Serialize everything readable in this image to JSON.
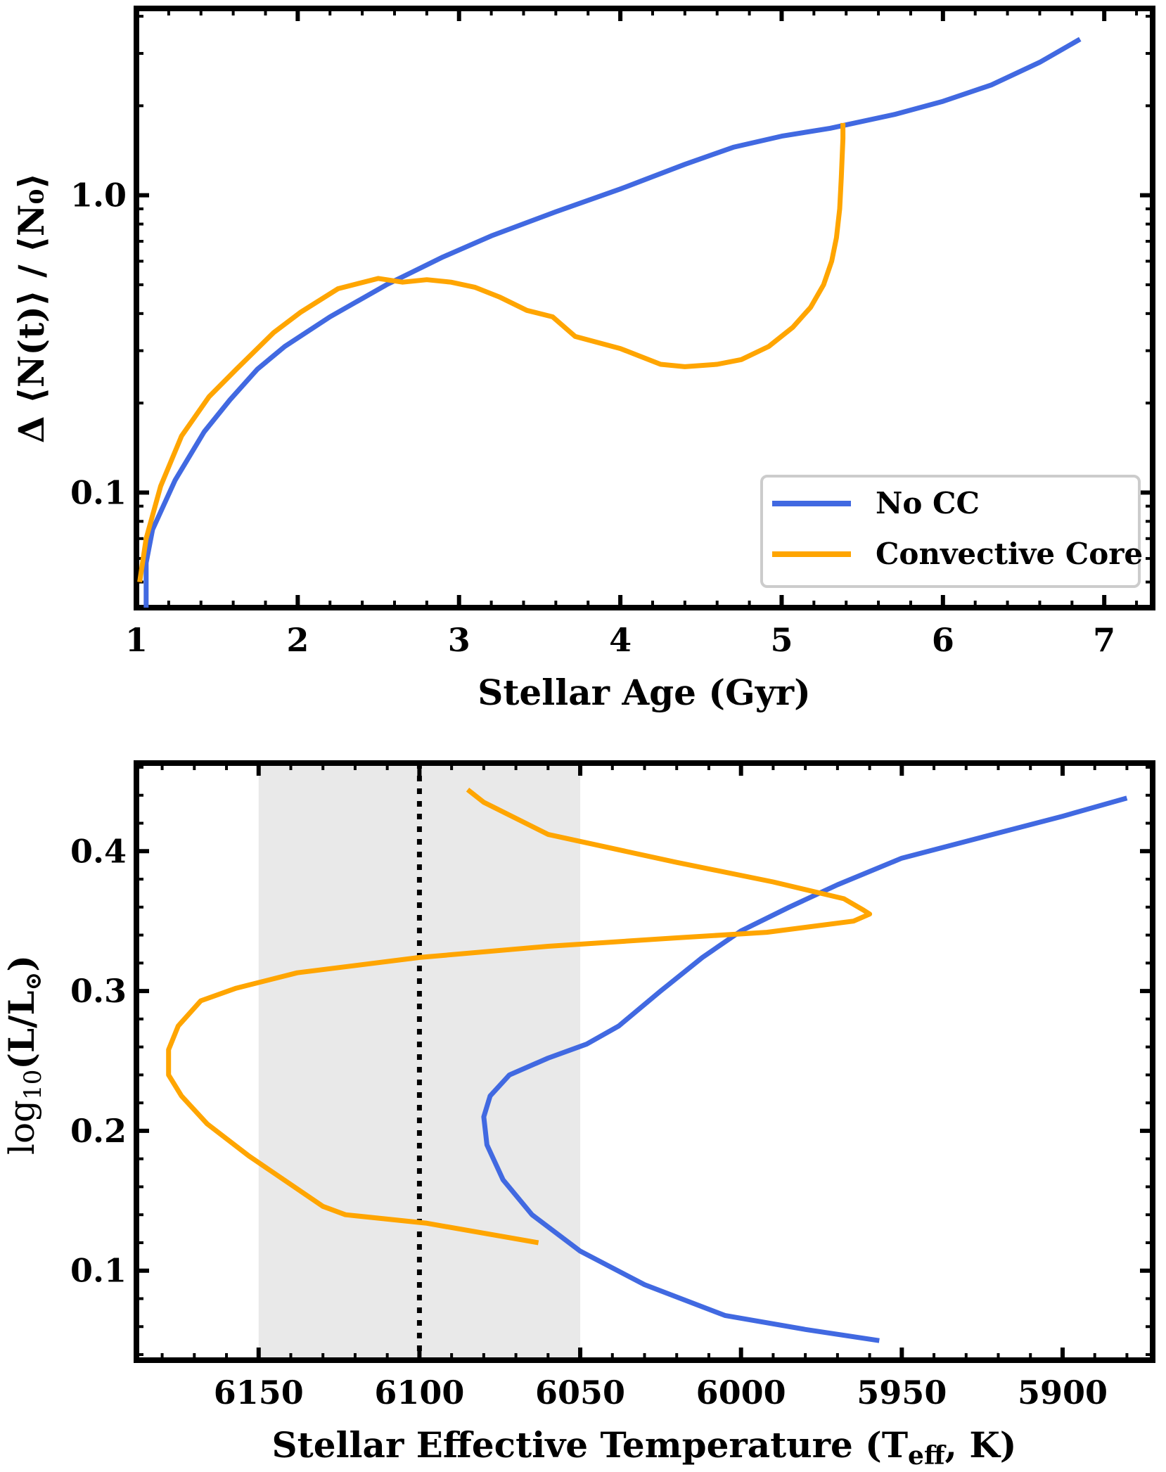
{
  "chart_data": [
    {
      "type": "line",
      "xscale": "linear",
      "yscale": "log",
      "xlabel": "Stellar Age (Gyr)",
      "ylabel": "Δ ⟨N(t)⟩ / ⟨N₀⟩",
      "xlim": [
        1.0,
        7.3
      ],
      "ylim": [
        0.041,
        4.25
      ],
      "xticks": [
        1,
        2,
        3,
        4,
        5,
        6,
        7
      ],
      "xtick_labels": [
        "1",
        "2",
        "3",
        "4",
        "5",
        "6",
        "7"
      ],
      "yticks": [
        0.1,
        1.0
      ],
      "ytick_labels": [
        "0.1",
        "1.0"
      ],
      "legend": {
        "position": "bottom-right",
        "entries": [
          "No CC",
          "Convective Core"
        ]
      },
      "series": [
        {
          "name": "No CC",
          "color": "#4169e1",
          "points": [
            [
              1.06,
              0.041
            ],
            [
              1.06,
              0.058
            ],
            [
              1.1,
              0.075
            ],
            [
              1.24,
              0.11
            ],
            [
              1.42,
              0.16
            ],
            [
              1.58,
              0.205
            ],
            [
              1.75,
              0.26
            ],
            [
              1.92,
              0.31
            ],
            [
              2.2,
              0.39
            ],
            [
              2.55,
              0.5
            ],
            [
              2.9,
              0.62
            ],
            [
              3.2,
              0.73
            ],
            [
              3.6,
              0.88
            ],
            [
              4.0,
              1.05
            ],
            [
              4.4,
              1.27
            ],
            [
              4.7,
              1.45
            ],
            [
              5.0,
              1.58
            ],
            [
              5.3,
              1.68
            ],
            [
              5.7,
              1.87
            ],
            [
              6.0,
              2.07
            ],
            [
              6.3,
              2.35
            ],
            [
              6.6,
              2.8
            ],
            [
              6.85,
              3.35
            ]
          ]
        },
        {
          "name": "Convective Core",
          "color": "#ffa500",
          "points": [
            [
              1.02,
              0.05
            ],
            [
              1.06,
              0.07
            ],
            [
              1.15,
              0.105
            ],
            [
              1.28,
              0.155
            ],
            [
              1.45,
              0.21
            ],
            [
              1.62,
              0.26
            ],
            [
              1.85,
              0.345
            ],
            [
              2.02,
              0.405
            ],
            [
              2.25,
              0.485
            ],
            [
              2.5,
              0.525
            ],
            [
              2.65,
              0.51
            ],
            [
              2.8,
              0.52
            ],
            [
              2.95,
              0.51
            ],
            [
              3.1,
              0.49
            ],
            [
              3.25,
              0.455
            ],
            [
              3.42,
              0.41
            ],
            [
              3.58,
              0.39
            ],
            [
              3.72,
              0.335
            ],
            [
              4.0,
              0.305
            ],
            [
              4.25,
              0.27
            ],
            [
              4.4,
              0.265
            ],
            [
              4.6,
              0.27
            ],
            [
              4.75,
              0.28
            ],
            [
              4.92,
              0.31
            ],
            [
              5.07,
              0.36
            ],
            [
              5.18,
              0.42
            ],
            [
              5.26,
              0.5
            ],
            [
              5.31,
              0.6
            ],
            [
              5.34,
              0.72
            ],
            [
              5.36,
              0.9
            ],
            [
              5.37,
              1.15
            ],
            [
              5.38,
              1.55
            ],
            [
              5.38,
              1.75
            ]
          ]
        }
      ]
    },
    {
      "type": "line",
      "xscale": "linear-reversed",
      "yscale": "linear",
      "xlabel": "Stellar Effective Temperature (T",
      "xlabel_sub": "eff",
      "xlabel_tail": ", K)",
      "ylabel": "log",
      "ylabel_sub": "10",
      "ylabel_tail": "(L/L",
      "ylabel_sym": "⊙",
      "ylabel_end": ")",
      "xlim": [
        6188,
        5872
      ],
      "ylim": [
        0.036,
        0.463
      ],
      "xticks": [
        6150,
        6100,
        6050,
        6000,
        5950,
        5900
      ],
      "xtick_labels": [
        "6150",
        "6100",
        "6050",
        "6000",
        "5950",
        "5900"
      ],
      "yticks": [
        0.1,
        0.2,
        0.3,
        0.4
      ],
      "ytick_labels": [
        "0.1",
        "0.2",
        "0.3",
        "0.4"
      ],
      "shaded_band": {
        "x_from": 6150,
        "x_to": 6050,
        "color": "#e9e9e9"
      },
      "reference_line": {
        "x": 6100,
        "style": "dotted",
        "color": "#000000"
      },
      "series": [
        {
          "name": "No CC",
          "color": "#4169e1",
          "points": [
            [
              5957,
              0.05
            ],
            [
              5980,
              0.058
            ],
            [
              6005,
              0.068
            ],
            [
              6030,
              0.09
            ],
            [
              6050,
              0.114
            ],
            [
              6065,
              0.14
            ],
            [
              6074,
              0.165
            ],
            [
              6079,
              0.19
            ],
            [
              6080,
              0.21
            ],
            [
              6078,
              0.225
            ],
            [
              6072,
              0.24
            ],
            [
              6060,
              0.252
            ],
            [
              6048,
              0.262
            ],
            [
              6038,
              0.275
            ],
            [
              6025,
              0.3
            ],
            [
              6012,
              0.324
            ],
            [
              6000,
              0.343
            ],
            [
              5985,
              0.36
            ],
            [
              5970,
              0.376
            ],
            [
              5950,
              0.395
            ],
            [
              5925,
              0.41
            ],
            [
              5900,
              0.425
            ],
            [
              5880,
              0.438
            ]
          ]
        },
        {
          "name": "Convective Core",
          "color": "#ffa500",
          "points": [
            [
              6063,
              0.12
            ],
            [
              6098,
              0.134
            ],
            [
              6123,
              0.14
            ],
            [
              6130,
              0.146
            ],
            [
              6153,
              0.182
            ],
            [
              6166,
              0.205
            ],
            [
              6174,
              0.225
            ],
            [
              6178,
              0.24
            ],
            [
              6178,
              0.258
            ],
            [
              6175,
              0.275
            ],
            [
              6168,
              0.293
            ],
            [
              6157,
              0.302
            ],
            [
              6138,
              0.313
            ],
            [
              6100,
              0.324
            ],
            [
              6060,
              0.332
            ],
            [
              6020,
              0.338
            ],
            [
              5992,
              0.342
            ],
            [
              5965,
              0.35
            ],
            [
              5960,
              0.355
            ],
            [
              5962,
              0.358
            ],
            [
              5968,
              0.366
            ],
            [
              5990,
              0.378
            ],
            [
              6020,
              0.392
            ],
            [
              6060,
              0.412
            ],
            [
              6080,
              0.435
            ],
            [
              6085,
              0.444
            ]
          ]
        }
      ]
    }
  ]
}
